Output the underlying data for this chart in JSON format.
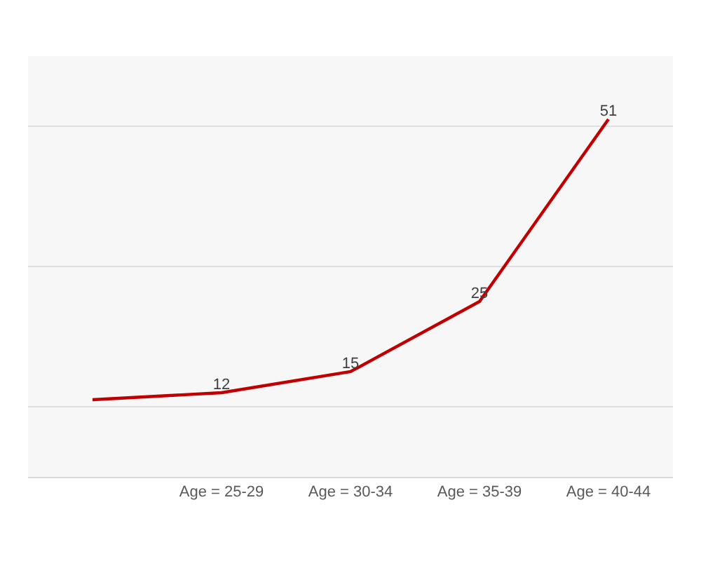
{
  "chart_data": {
    "type": "line",
    "categories": [
      null,
      "Age = 25-29",
      "Age = 30-34",
      "Age = 35-39",
      "Age = 40-44"
    ],
    "series": [
      {
        "color": "#c00000",
        "values": [
          11,
          12,
          15,
          25,
          51
        ],
        "value_labels": [
          null,
          "12",
          "15",
          "25",
          "51"
        ]
      }
    ],
    "ylim": [
      0,
      60
    ],
    "yticks": [
      {
        "value": 10,
        "label": null
      },
      {
        "value": 30,
        "label": null
      },
      {
        "value": 50,
        "label": null
      }
    ],
    "grid": "y",
    "marker": "none",
    "line_style": "solid",
    "tick_labels": "x"
  }
}
